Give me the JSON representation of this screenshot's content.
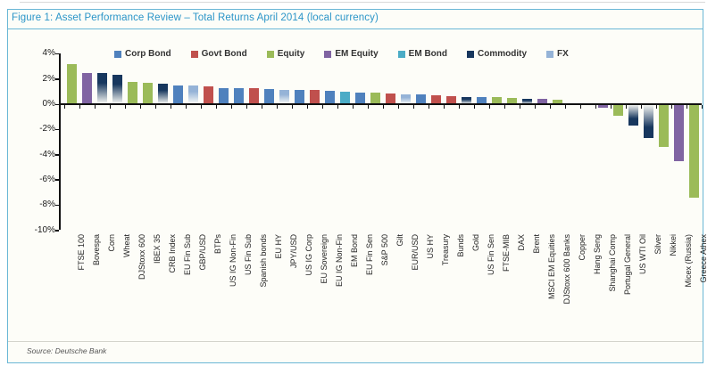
{
  "figure": {
    "title": "Figure 1: Asset Performance Review – Total Returns April 2014 (local currency)",
    "source": "Source: Deutsche Bank"
  },
  "colors": {
    "border_teal": "#6ab7d6",
    "title_blue": "#2b95c8",
    "axis_black": "#111111",
    "corp": "#4f81bd",
    "govt": "#c0504d",
    "equity": "#9bbb59",
    "em_equity": "#8064a2",
    "em_bond": "#4bacc6",
    "commodity": "#17375e",
    "fx": "#95b3d7"
  },
  "chart_data": {
    "type": "bar",
    "title": "Figure 1: Asset Performance Review – Total Returns April 2014 (local currency)",
    "xlabel": "",
    "ylabel": "",
    "ylim": [
      -10,
      4
    ],
    "y_ticks": [
      4,
      2,
      0,
      -2,
      -4,
      -6,
      -8,
      -10
    ],
    "y_tick_suffix": "%",
    "grid": false,
    "legend_position": "top",
    "legend": [
      {
        "key": "corp",
        "label": "Corp Bond"
      },
      {
        "key": "govt",
        "label": "Govt Bond"
      },
      {
        "key": "equity",
        "label": "Equity"
      },
      {
        "key": "em_equity",
        "label": "EM Equity"
      },
      {
        "key": "em_bond",
        "label": "EM Bond"
      },
      {
        "key": "commodity",
        "label": "Commodity"
      },
      {
        "key": "fx",
        "label": "FX"
      }
    ],
    "categories": [
      "FTSE 100",
      "Bovespa",
      "Corn",
      "Wheat",
      "DJStoxx 600",
      "IBEX 35",
      "CRB Index",
      "EU Fin Sub",
      "GBP/USD",
      "BTPs",
      "US IG Non-Fin",
      "US Fin Sub",
      "Spanish bonds",
      "EU HY",
      "JPY/USD",
      "US IG Corp",
      "EU Sovereign",
      "EU IG Non-Fin",
      "EM Bond",
      "EU Fin Sen",
      "S&P 500",
      "Gilt",
      "EUR/USD",
      "US HY",
      "Treasury",
      "Bunds",
      "Gold",
      "US Fin Sen",
      "FTSE-MIB",
      "DAX",
      "Brent",
      "MSCI EM Equities",
      "DJStoxx 600 Banks",
      "Copper",
      "Hang Seng",
      "Shanghai Comp",
      "Portugal General",
      "US WTI Oil",
      "Silver",
      "Nikkei",
      "Micex (Russia)",
      "Greece Athex"
    ],
    "classes": [
      "equity",
      "em_equity",
      "commodity",
      "commodity",
      "equity",
      "equity",
      "commodity",
      "corp",
      "fx",
      "govt",
      "corp",
      "corp",
      "govt",
      "corp",
      "fx",
      "corp",
      "govt",
      "corp",
      "em_bond",
      "corp",
      "equity",
      "govt",
      "fx",
      "corp",
      "govt",
      "govt",
      "commodity",
      "corp",
      "equity",
      "equity",
      "commodity",
      "em_equity",
      "equity",
      "commodity",
      "equity",
      "em_equity",
      "equity",
      "commodity",
      "commodity",
      "equity",
      "em_equity",
      "equity"
    ],
    "values": [
      3.2,
      2.5,
      2.45,
      2.3,
      1.75,
      1.7,
      1.6,
      1.5,
      1.45,
      1.4,
      1.3,
      1.3,
      1.25,
      1.2,
      1.15,
      1.1,
      1.1,
      1.05,
      1.0,
      0.95,
      0.9,
      0.85,
      0.8,
      0.75,
      0.7,
      0.65,
      0.6,
      0.55,
      0.55,
      0.5,
      0.4,
      0.4,
      0.35,
      0.1,
      0.05,
      -0.3,
      -0.9,
      -1.7,
      -2.7,
      -3.4,
      -4.5,
      -7.4
    ]
  }
}
